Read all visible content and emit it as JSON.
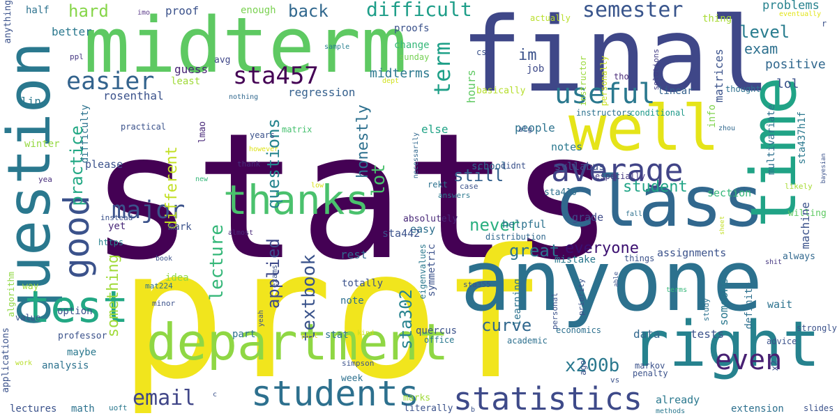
{
  "words": [
    {
      "text": "stats",
      "color": "#440154"
    },
    {
      "text": "prof",
      "color": "#f1e51d"
    },
    {
      "text": "final",
      "color": "#3f4788"
    },
    {
      "text": "anyone",
      "color": "#2c718e"
    },
    {
      "text": "midterm",
      "color": "#5ec962"
    },
    {
      "text": "question",
      "color": "#2a788e"
    },
    {
      "text": "department",
      "color": "#8fd744"
    },
    {
      "text": "class",
      "color": "#31688e"
    },
    {
      "text": "time",
      "color": "#20a386"
    },
    {
      "text": "right",
      "color": "#26828e"
    },
    {
      "text": "well",
      "color": "#e5e419"
    },
    {
      "text": "thanks",
      "color": "#4ac16d"
    },
    {
      "text": "test",
      "color": "#22a884"
    },
    {
      "text": "good",
      "color": "#3b528b"
    },
    {
      "text": "students",
      "color": "#2d708e"
    },
    {
      "text": "statistics",
      "color": "#3e4a89"
    },
    {
      "text": "average",
      "color": "#414487"
    },
    {
      "text": "sta457",
      "color": "#440154"
    },
    {
      "text": "major",
      "color": "#3b528b"
    },
    {
      "text": "useful",
      "color": "#2a788e"
    },
    {
      "text": "easier",
      "color": "#33638d"
    },
    {
      "text": "even",
      "color": "#482173"
    },
    {
      "text": "email",
      "color": "#404688"
    },
    {
      "text": "semester",
      "color": "#39558c"
    },
    {
      "text": "difficult",
      "color": "#1f9e89"
    },
    {
      "text": "term",
      "color": "#1fa088"
    },
    {
      "text": "level",
      "color": "#287c8e"
    },
    {
      "text": "exam",
      "color": "#2d708e"
    },
    {
      "text": "positive",
      "color": "#31688e"
    },
    {
      "text": "lol",
      "color": "#3b528b"
    },
    {
      "text": "x200b",
      "color": "#2a788e"
    },
    {
      "text": "curve",
      "color": "#31688e"
    },
    {
      "text": "textbook",
      "color": "#3a538b"
    },
    {
      "text": "lecture",
      "color": "#35b779"
    },
    {
      "text": "applied",
      "color": "#3e4989"
    },
    {
      "text": "practice",
      "color": "#22a884"
    },
    {
      "text": "honestly",
      "color": "#2d708e"
    },
    {
      "text": "questions",
      "color": "#25848e"
    },
    {
      "text": "lot",
      "color": "#4ac16d"
    },
    {
      "text": "still",
      "color": "#34618d"
    },
    {
      "text": "great",
      "color": "#2c738e"
    },
    {
      "text": "never",
      "color": "#29af7f"
    },
    {
      "text": "everyone",
      "color": "#3b0f70"
    },
    {
      "text": "student",
      "color": "#20a486"
    },
    {
      "text": "sta302",
      "color": "#26828e"
    },
    {
      "text": "something",
      "color": "#a0da39"
    },
    {
      "text": "different",
      "color": "#c2df23"
    },
    {
      "text": "hard",
      "color": "#86d549"
    },
    {
      "text": "back",
      "color": "#31688e"
    },
    {
      "text": "im",
      "color": "#3b528b"
    },
    {
      "text": "midterms",
      "color": "#2a788e"
    },
    {
      "text": "regression",
      "color": "#35608d"
    },
    {
      "text": "guess",
      "color": "#482475"
    },
    {
      "text": "better",
      "color": "#2a788e"
    },
    {
      "text": "proof",
      "color": "#3b528b"
    },
    {
      "text": "enough",
      "color": "#7ad151"
    },
    {
      "text": "half",
      "color": "#2c728e"
    },
    {
      "text": "imo",
      "color": "#5c3c8b"
    },
    {
      "text": "proofs",
      "color": "#3b528b"
    },
    {
      "text": "change",
      "color": "#35b779"
    },
    {
      "text": "sunday",
      "color": "#75d054"
    },
    {
      "text": "actually",
      "color": "#b8de29"
    },
    {
      "text": "instructor",
      "color": "#9bd93c"
    },
    {
      "text": "personally",
      "color": "#c8e020"
    },
    {
      "text": "eventually",
      "color": "#e2e418"
    },
    {
      "text": "problems",
      "color": "#26828e"
    },
    {
      "text": "thing",
      "color": "#a8db34"
    },
    {
      "text": "avg",
      "color": "#3f4788"
    },
    {
      "text": "sample",
      "color": "#277f8e"
    },
    {
      "text": "cs",
      "color": "#3b528b"
    },
    {
      "text": "job",
      "color": "#3e4a89"
    },
    {
      "text": "matrices",
      "color": "#3b528b"
    },
    {
      "text": "solutions",
      "color": "#433e85"
    },
    {
      "text": "tho",
      "color": "#482878"
    },
    {
      "text": "thought",
      "color": "#2d708e"
    },
    {
      "text": "ppl",
      "color": "#453781"
    },
    {
      "text": "least",
      "color": "#a0da39"
    },
    {
      "text": "basically",
      "color": "#b5de2b"
    },
    {
      "text": "dept",
      "color": "#d0e11c"
    },
    {
      "text": "linear",
      "color": "#34618d"
    },
    {
      "text": "lin",
      "color": "#2a788e"
    },
    {
      "text": "rosenthal",
      "color": "#3b528b"
    },
    {
      "text": "nothing",
      "color": "#31688e"
    },
    {
      "text": "hours",
      "color": "#5ec962"
    },
    {
      "text": "instructors",
      "color": "#2c728e"
    },
    {
      "text": "conditional",
      "color": "#1f9a8a"
    },
    {
      "text": "multivariate",
      "color": "#2d708e"
    },
    {
      "text": "sta437h1f",
      "color": "#2a788e"
    },
    {
      "text": "info",
      "color": "#7fd34e"
    },
    {
      "text": "zhou",
      "color": "#31688e"
    },
    {
      "text": "difficulty",
      "color": "#2c728e"
    },
    {
      "text": "practical",
      "color": "#3b528b"
    },
    {
      "text": "else",
      "color": "#20a386"
    },
    {
      "text": "people",
      "color": "#2c728e"
    },
    {
      "text": "alg",
      "color": "#3b528b"
    },
    {
      "text": "notes",
      "color": "#2a788e"
    },
    {
      "text": "matrix",
      "color": "#46c06f"
    },
    {
      "text": "years",
      "color": "#3b528b"
    },
    {
      "text": "lmao",
      "color": "#482878"
    },
    {
      "text": "winter",
      "color": "#95d840"
    },
    {
      "text": "please",
      "color": "#3b528b"
    },
    {
      "text": "however",
      "color": "#dde318"
    },
    {
      "text": "thank",
      "color": "#472d7b"
    },
    {
      "text": "rekt",
      "color": "#2c728e"
    },
    {
      "text": "school",
      "color": "#31688e"
    },
    {
      "text": "didnt",
      "color": "#3b528b"
    },
    {
      "text": "necessarily",
      "color": "#31688e"
    },
    {
      "text": "syllabus",
      "color": "#3b528b"
    },
    {
      "text": "especially",
      "color": "#453781"
    },
    {
      "text": "bayesian",
      "color": "#3b528b"
    },
    {
      "text": "yea",
      "color": "#472d7b"
    },
    {
      "text": "low",
      "color": "#d8e219"
    },
    {
      "text": "new",
      "color": "#35b779"
    },
    {
      "text": "case",
      "color": "#3b528b"
    },
    {
      "text": "sta410",
      "color": "#2d708e"
    },
    {
      "text": "section",
      "color": "#35b779"
    },
    {
      "text": "likely",
      "color": "#a8db34"
    },
    {
      "text": "instead",
      "color": "#3b528b"
    },
    {
      "text": "answers",
      "color": "#2a788e"
    },
    {
      "text": "grade",
      "color": "#3e4a89"
    },
    {
      "text": "fall",
      "color": "#2d708e"
    },
    {
      "text": "willing",
      "color": "#5ec962"
    },
    {
      "text": "sheet",
      "color": "#c2df23"
    },
    {
      "text": "yet",
      "color": "#482878"
    },
    {
      "text": "mark",
      "color": "#3b528b"
    },
    {
      "text": "absolutely",
      "color": "#482878"
    },
    {
      "text": "helpful",
      "color": "#2c728e"
    },
    {
      "text": "easy",
      "color": "#2d708e"
    },
    {
      "text": "https",
      "color": "#26828e"
    },
    {
      "text": "almost",
      "color": "#482878"
    },
    {
      "text": "sta442",
      "color": "#3b528b"
    },
    {
      "text": "distribution",
      "color": "#31688e"
    },
    {
      "text": "assignments",
      "color": "#3b528b"
    },
    {
      "text": "machine",
      "color": "#3b528b"
    },
    {
      "text": "mistake",
      "color": "#2a788e"
    },
    {
      "text": "always",
      "color": "#31688e"
    },
    {
      "text": "algorithm",
      "color": "#90d743"
    },
    {
      "text": "book",
      "color": "#3b528b"
    },
    {
      "text": "idea",
      "color": "#8fd744"
    },
    {
      "text": "rest",
      "color": "#31688e"
    },
    {
      "text": "eigenvalues",
      "color": "#2a788e"
    },
    {
      "text": "symmetric",
      "color": "#3b528b"
    },
    {
      "text": "things",
      "color": "#3b528b"
    },
    {
      "text": "able",
      "color": "#3b528b"
    },
    {
      "text": "shit",
      "color": "#453781"
    },
    {
      "text": "way",
      "color": "#a0da39"
    },
    {
      "text": "mat224",
      "color": "#2d708e"
    },
    {
      "text": "minor",
      "color": "#3b528b"
    },
    {
      "text": "totally",
      "color": "#3b528b"
    },
    {
      "text": "exams",
      "color": "#3b528b"
    },
    {
      "text": "sta355",
      "color": "#3b528b"
    },
    {
      "text": "learning",
      "color": "#2c728e"
    },
    {
      "text": "priority",
      "color": "#3b528b"
    },
    {
      "text": "terms",
      "color": "#35b779"
    },
    {
      "text": "study",
      "color": "#2c728e"
    },
    {
      "text": "someone",
      "color": "#2a788e"
    },
    {
      "text": "definite",
      "color": "#2d708e"
    },
    {
      "text": "applications",
      "color": "#3b528b"
    },
    {
      "text": "value",
      "color": "#3b528b"
    },
    {
      "text": "option",
      "color": "#3b528b"
    },
    {
      "text": "note",
      "color": "#2d708e"
    },
    {
      "text": "personal",
      "color": "#3b528b"
    },
    {
      "text": "wait",
      "color": "#2c728e"
    },
    {
      "text": "strongly",
      "color": "#3b528b"
    },
    {
      "text": "professor",
      "color": "#3b528b"
    },
    {
      "text": "maybe",
      "color": "#2a788e"
    },
    {
      "text": "yeah",
      "color": "#3b528b"
    },
    {
      "text": "quercus",
      "color": "#3b528b"
    },
    {
      "text": "economics",
      "color": "#2d708e"
    },
    {
      "text": "part",
      "color": "#2c728e"
    },
    {
      "text": "stat",
      "color": "#2c728e"
    },
    {
      "text": "office",
      "color": "#2a788e"
    },
    {
      "text": "academic",
      "color": "#2d708e"
    },
    {
      "text": "data",
      "color": "#31688e"
    },
    {
      "text": "tests",
      "color": "#3b528b"
    },
    {
      "text": "advice",
      "color": "#3b528b"
    },
    {
      "text": "past",
      "color": "#d8e219"
    },
    {
      "text": "kind",
      "color": "#c8e020"
    },
    {
      "text": "analysis",
      "color": "#2c728e"
    },
    {
      "text": "work",
      "color": "#b8de29"
    },
    {
      "text": "simpson",
      "color": "#3b528b"
    },
    {
      "text": "week",
      "color": "#2d708e"
    },
    {
      "text": "markov",
      "color": "#3b528b"
    },
    {
      "text": "penalty",
      "color": "#3b528b"
    },
    {
      "text": "ago",
      "color": "#3b528b"
    },
    {
      "text": "vs",
      "color": "#3b528b"
    },
    {
      "text": "x2",
      "color": "#3b528b"
    },
    {
      "text": "uoft",
      "color": "#2a788e"
    },
    {
      "text": "marks",
      "color": "#a0da39"
    },
    {
      "text": "lectures",
      "color": "#3b528b"
    },
    {
      "text": "math",
      "color": "#2c728e"
    },
    {
      "text": "literally",
      "color": "#3b528b"
    },
    {
      "text": "already",
      "color": "#2a788e"
    },
    {
      "text": "extension",
      "color": "#2d708e"
    },
    {
      "text": "slides",
      "color": "#3b528b"
    },
    {
      "text": "methods",
      "color": "#2a788e"
    },
    {
      "text": "b",
      "color": "#3b528b"
    },
    {
      "text": "c",
      "color": "#3b528b"
    },
    {
      "text": "r",
      "color": "#3b528b"
    },
    {
      "text": "anything",
      "color": "#3b528b"
    }
  ]
}
